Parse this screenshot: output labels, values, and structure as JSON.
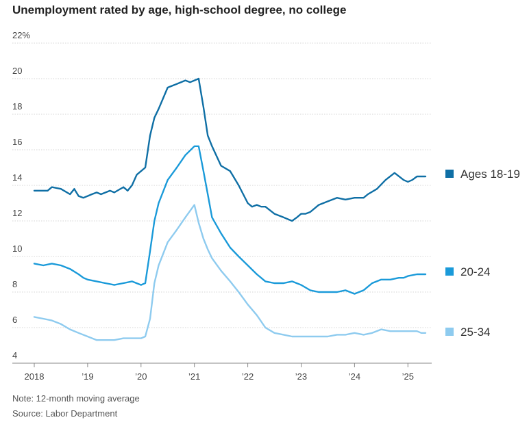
{
  "title": "Unemployment rated by age, high-school degree, no college",
  "note": "Note: 12-month moving average",
  "source": "Source: Labor Department",
  "chart_data": {
    "type": "line",
    "title": "Unemployment rated by age, high-school degree, no college",
    "ylim": [
      4,
      22
    ],
    "xlim": [
      2018.0,
      2025.42
    ],
    "y_ticks": [
      {
        "value": 4,
        "label": "4"
      },
      {
        "value": 6,
        "label": "6"
      },
      {
        "value": 8,
        "label": "8"
      },
      {
        "value": 10,
        "label": "10"
      },
      {
        "value": 12,
        "label": "12"
      },
      {
        "value": 14,
        "label": "14"
      },
      {
        "value": 16,
        "label": "16"
      },
      {
        "value": 18,
        "label": "18"
      },
      {
        "value": 20,
        "label": "20"
      },
      {
        "value": 22,
        "label": "22%"
      }
    ],
    "x_ticks": [
      {
        "value": 2018,
        "label": "2018"
      },
      {
        "value": 2019,
        "label": "’19"
      },
      {
        "value": 2020,
        "label": "’20"
      },
      {
        "value": 2021,
        "label": "’21"
      },
      {
        "value": 2022,
        "label": "’22"
      },
      {
        "value": 2023,
        "label": "’23"
      },
      {
        "value": 2024,
        "label": "’24"
      },
      {
        "value": 2025,
        "label": "’25"
      }
    ],
    "grid": true,
    "legend_placement": "right, beside line ends",
    "series": [
      {
        "name": "Ages 18-19",
        "color": "#0f6fa5",
        "x": [
          2018.0,
          2018.25,
          2018.33,
          2018.5,
          2018.67,
          2018.75,
          2018.83,
          2018.92,
          2019.0,
          2019.08,
          2019.17,
          2019.25,
          2019.42,
          2019.5,
          2019.67,
          2019.75,
          2019.83,
          2019.92,
          2020.0,
          2020.08,
          2020.17,
          2020.25,
          2020.33,
          2020.5,
          2020.67,
          2020.83,
          2020.92,
          2021.0,
          2021.08,
          2021.17,
          2021.25,
          2021.33,
          2021.5,
          2021.67,
          2021.83,
          2022.0,
          2022.08,
          2022.17,
          2022.25,
          2022.33,
          2022.5,
          2022.67,
          2022.83,
          2022.92,
          2023.0,
          2023.08,
          2023.17,
          2023.33,
          2023.5,
          2023.67,
          2023.83,
          2024.0,
          2024.08,
          2024.17,
          2024.25,
          2024.42,
          2024.58,
          2024.75,
          2024.92,
          2025.0,
          2025.08,
          2025.17,
          2025.25,
          2025.33
        ],
        "values": [
          13.7,
          13.7,
          13.9,
          13.8,
          13.5,
          13.8,
          13.4,
          13.3,
          13.4,
          13.5,
          13.6,
          13.5,
          13.7,
          13.6,
          13.9,
          13.7,
          14.0,
          14.6,
          14.8,
          15.0,
          16.8,
          17.8,
          18.3,
          19.5,
          19.7,
          19.9,
          19.8,
          19.9,
          20.0,
          18.4,
          16.8,
          16.2,
          15.1,
          14.8,
          14.0,
          13.0,
          12.8,
          12.9,
          12.8,
          12.8,
          12.4,
          12.2,
          12.0,
          12.2,
          12.4,
          12.4,
          12.5,
          12.9,
          13.1,
          13.3,
          13.2,
          13.3,
          13.3,
          13.3,
          13.5,
          13.8,
          14.3,
          14.7,
          14.3,
          14.2,
          14.3,
          14.5,
          14.5,
          14.5
        ]
      },
      {
        "name": "20-24",
        "color": "#1a9ad9",
        "x": [
          2018.0,
          2018.17,
          2018.33,
          2018.5,
          2018.67,
          2018.83,
          2018.92,
          2019.0,
          2019.17,
          2019.33,
          2019.5,
          2019.67,
          2019.83,
          2020.0,
          2020.08,
          2020.17,
          2020.25,
          2020.33,
          2020.5,
          2020.67,
          2020.83,
          2021.0,
          2021.08,
          2021.17,
          2021.25,
          2021.33,
          2021.5,
          2021.67,
          2021.83,
          2022.0,
          2022.17,
          2022.33,
          2022.5,
          2022.67,
          2022.83,
          2023.0,
          2023.17,
          2023.33,
          2023.5,
          2023.67,
          2023.83,
          2024.0,
          2024.17,
          2024.33,
          2024.5,
          2024.67,
          2024.83,
          2024.92,
          2025.0,
          2025.17,
          2025.25,
          2025.33
        ],
        "values": [
          9.6,
          9.5,
          9.6,
          9.5,
          9.3,
          9.0,
          8.8,
          8.7,
          8.6,
          8.5,
          8.4,
          8.5,
          8.6,
          8.4,
          8.5,
          10.3,
          12.0,
          13.0,
          14.3,
          15.0,
          15.7,
          16.2,
          16.2,
          14.8,
          13.5,
          12.2,
          11.3,
          10.5,
          10.0,
          9.5,
          9.0,
          8.6,
          8.5,
          8.5,
          8.6,
          8.4,
          8.1,
          8.0,
          8.0,
          8.0,
          8.1,
          7.9,
          8.1,
          8.5,
          8.7,
          8.7,
          8.8,
          8.8,
          8.9,
          9.0,
          9.0,
          9.0
        ]
      },
      {
        "name": "25-34",
        "color": "#8ecbef",
        "x": [
          2018.0,
          2018.17,
          2018.33,
          2018.5,
          2018.67,
          2018.83,
          2019.0,
          2019.17,
          2019.33,
          2019.5,
          2019.67,
          2019.83,
          2020.0,
          2020.08,
          2020.17,
          2020.25,
          2020.33,
          2020.5,
          2020.67,
          2020.83,
          2021.0,
          2021.08,
          2021.17,
          2021.25,
          2021.33,
          2021.5,
          2021.67,
          2021.83,
          2022.0,
          2022.17,
          2022.33,
          2022.5,
          2022.67,
          2022.83,
          2023.0,
          2023.17,
          2023.33,
          2023.5,
          2023.67,
          2023.83,
          2024.0,
          2024.17,
          2024.33,
          2024.5,
          2024.67,
          2024.83,
          2024.92,
          2025.0,
          2025.17,
          2025.25,
          2025.33
        ],
        "values": [
          6.6,
          6.5,
          6.4,
          6.2,
          5.9,
          5.7,
          5.5,
          5.3,
          5.3,
          5.3,
          5.4,
          5.4,
          5.4,
          5.5,
          6.5,
          8.5,
          9.5,
          10.8,
          11.5,
          12.2,
          12.9,
          11.9,
          11.0,
          10.4,
          9.9,
          9.2,
          8.6,
          8.0,
          7.3,
          6.7,
          6.0,
          5.7,
          5.6,
          5.5,
          5.5,
          5.5,
          5.5,
          5.5,
          5.6,
          5.6,
          5.7,
          5.6,
          5.7,
          5.9,
          5.8,
          5.8,
          5.8,
          5.8,
          5.8,
          5.7,
          5.7
        ]
      }
    ]
  }
}
